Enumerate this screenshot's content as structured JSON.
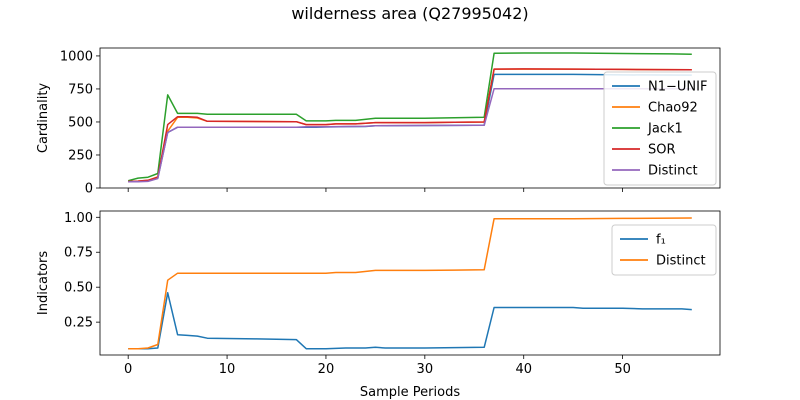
{
  "figure": {
    "title": "wilderness area (Q27995042)"
  },
  "chart_data": [
    {
      "type": "line",
      "title": "",
      "xlabel": "",
      "ylabel": "Cardinality",
      "xlim": [
        -2.85,
        59.85
      ],
      "ylim": [
        0,
        1060
      ],
      "xticks": [
        0,
        10,
        20,
        30,
        40,
        50
      ],
      "yticks": [
        0,
        250,
        500,
        750,
        1000
      ],
      "xtick_labels_visible": false,
      "grid": false,
      "legend_position": "center-right",
      "series": [
        {
          "name": "N1−UNIF",
          "color": "#1f77b4",
          "points": [
            [
              0,
              48
            ],
            [
              1,
              50
            ],
            [
              2,
              55
            ],
            [
              3,
              75
            ],
            [
              4,
              420
            ],
            [
              5,
              460
            ],
            [
              6,
              460
            ],
            [
              7,
              460
            ],
            [
              8,
              460
            ],
            [
              17,
              460
            ],
            [
              18,
              460
            ],
            [
              19,
              460
            ],
            [
              20,
              462
            ],
            [
              22,
              465
            ],
            [
              24,
              466
            ],
            [
              25,
              472
            ],
            [
              26,
              472
            ],
            [
              30,
              473
            ],
            [
              33,
              474
            ],
            [
              35,
              475
            ],
            [
              36,
              476
            ],
            [
              37,
              860
            ],
            [
              40,
              860
            ],
            [
              45,
              860
            ],
            [
              50,
              856
            ],
            [
              57,
              855
            ]
          ]
        },
        {
          "name": "Chao92",
          "color": "#ff7f0e",
          "points": [
            [
              0,
              50
            ],
            [
              1,
              52
            ],
            [
              2,
              58
            ],
            [
              3,
              85
            ],
            [
              4,
              430
            ],
            [
              5,
              535
            ],
            [
              6,
              535
            ],
            [
              7,
              530
            ],
            [
              8,
              505
            ],
            [
              17,
              502
            ],
            [
              18,
              480
            ],
            [
              20,
              480
            ],
            [
              21,
              485
            ],
            [
              23,
              485
            ],
            [
              25,
              495
            ],
            [
              26,
              495
            ],
            [
              30,
              495
            ],
            [
              33,
              498
            ],
            [
              36,
              500
            ],
            [
              37,
              900
            ],
            [
              40,
              900
            ],
            [
              45,
              900
            ],
            [
              50,
              898
            ],
            [
              57,
              895
            ]
          ]
        },
        {
          "name": "Jack1",
          "color": "#2ca02c",
          "points": [
            [
              0,
              55
            ],
            [
              1,
              75
            ],
            [
              2,
              82
            ],
            [
              3,
              110
            ],
            [
              4,
              705
            ],
            [
              5,
              565
            ],
            [
              7,
              565
            ],
            [
              8,
              558
            ],
            [
              12,
              558
            ],
            [
              17,
              558
            ],
            [
              18,
              508
            ],
            [
              20,
              508
            ],
            [
              21,
              512
            ],
            [
              23,
              512
            ],
            [
              25,
              528
            ],
            [
              26,
              528
            ],
            [
              30,
              528
            ],
            [
              33,
              532
            ],
            [
              36,
              535
            ],
            [
              37,
              1020
            ],
            [
              40,
              1022
            ],
            [
              45,
              1022
            ],
            [
              50,
              1018
            ],
            [
              55,
              1015
            ],
            [
              57,
              1012
            ]
          ]
        },
        {
          "name": "SOR",
          "color": "#d62728",
          "points": [
            [
              0,
              50
            ],
            [
              1,
              52
            ],
            [
              2,
              58
            ],
            [
              3,
              82
            ],
            [
              4,
              480
            ],
            [
              5,
              540
            ],
            [
              6,
              540
            ],
            [
              7,
              535
            ],
            [
              8,
              505
            ],
            [
              17,
              502
            ],
            [
              18,
              480
            ],
            [
              20,
              480
            ],
            [
              21,
              485
            ],
            [
              23,
              485
            ],
            [
              25,
              495
            ],
            [
              26,
              495
            ],
            [
              30,
              495
            ],
            [
              33,
              498
            ],
            [
              36,
              500
            ],
            [
              37,
              900
            ],
            [
              40,
              902
            ],
            [
              45,
              900
            ],
            [
              50,
              898
            ],
            [
              57,
              895
            ]
          ]
        },
        {
          "name": "Distinct",
          "color": "#9467bd",
          "points": [
            [
              0,
              48
            ],
            [
              1,
              48
            ],
            [
              2,
              50
            ],
            [
              3,
              72
            ],
            [
              4,
              420
            ],
            [
              5,
              460
            ],
            [
              8,
              460
            ],
            [
              17,
              460
            ],
            [
              18,
              463
            ],
            [
              20,
              463
            ],
            [
              22,
              466
            ],
            [
              24,
              468
            ],
            [
              25,
              472
            ],
            [
              30,
              473
            ],
            [
              33,
              474
            ],
            [
              36,
              475
            ],
            [
              37,
              752
            ],
            [
              40,
              752
            ],
            [
              45,
              752
            ],
            [
              50,
              752
            ],
            [
              57,
              752
            ]
          ]
        }
      ]
    },
    {
      "type": "line",
      "title": "",
      "xlabel": "Sample Periods",
      "ylabel": "Indicators",
      "xlim": [
        -2.85,
        59.85
      ],
      "ylim": [
        0.015,
        1.045
      ],
      "xticks": [
        0,
        10,
        20,
        30,
        40,
        50
      ],
      "yticks": [
        0.25,
        0.5,
        0.75,
        1.0
      ],
      "ytick_labels": [
        "0.25",
        "0.50",
        "0.75",
        "1.00"
      ],
      "grid": false,
      "legend_position": "top-right",
      "series": [
        {
          "name": "f₁",
          "color": "#1f77b4",
          "points": [
            [
              0,
              0.06
            ],
            [
              1,
              0.06
            ],
            [
              2,
              0.06
            ],
            [
              3,
              0.065
            ],
            [
              4,
              0.46
            ],
            [
              5,
              0.16
            ],
            [
              6,
              0.155
            ],
            [
              7,
              0.15
            ],
            [
              8,
              0.135
            ],
            [
              13,
              0.13
            ],
            [
              17,
              0.125
            ],
            [
              18,
              0.06
            ],
            [
              20,
              0.06
            ],
            [
              22,
              0.065
            ],
            [
              24,
              0.065
            ],
            [
              25,
              0.07
            ],
            [
              26,
              0.065
            ],
            [
              30,
              0.065
            ],
            [
              33,
              0.068
            ],
            [
              36,
              0.07
            ],
            [
              37,
              0.355
            ],
            [
              40,
              0.355
            ],
            [
              45,
              0.355
            ],
            [
              46,
              0.35
            ],
            [
              50,
              0.35
            ],
            [
              52,
              0.345
            ],
            [
              56,
              0.345
            ],
            [
              57,
              0.34
            ]
          ]
        },
        {
          "name": "Distinct",
          "color": "#ff7f0e",
          "points": [
            [
              0,
              0.06
            ],
            [
              1,
              0.06
            ],
            [
              2,
              0.065
            ],
            [
              3,
              0.09
            ],
            [
              4,
              0.55
            ],
            [
              5,
              0.6
            ],
            [
              10,
              0.6
            ],
            [
              15,
              0.6
            ],
            [
              19,
              0.6
            ],
            [
              20,
              0.6
            ],
            [
              21,
              0.605
            ],
            [
              23,
              0.605
            ],
            [
              25,
              0.62
            ],
            [
              30,
              0.62
            ],
            [
              33,
              0.622
            ],
            [
              36,
              0.625
            ],
            [
              37,
              0.99
            ],
            [
              40,
              0.99
            ],
            [
              45,
              0.99
            ],
            [
              50,
              0.992
            ],
            [
              57,
              0.995
            ]
          ]
        }
      ]
    }
  ]
}
